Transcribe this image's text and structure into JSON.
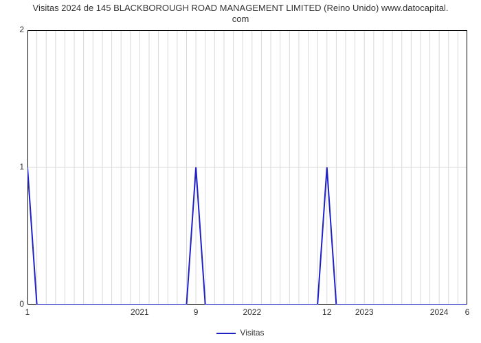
{
  "chart": {
    "type": "line",
    "title_line1": "Visitas 2024 de 145 BLACKBOROUGH ROAD MANAGEMENT LIMITED (Reino Unido) www.datocapital.",
    "title_line2": "com",
    "title_fontsize": 13,
    "title_color": "#333333",
    "background_color": "#ffffff",
    "plot_border_color": "#000000",
    "grid_color": "#d9d9d9",
    "axis_label_fontsize": 12,
    "axis_label_color": "#333333",
    "xlim": [
      0,
      47
    ],
    "ylim": [
      0,
      2
    ],
    "ytick_positions": [
      0,
      1,
      2
    ],
    "ytick_labels": [
      "0",
      "1",
      "2"
    ],
    "xgrid_positions": [
      0,
      1,
      2,
      3,
      4,
      5,
      6,
      7,
      8,
      9,
      10,
      11,
      12,
      13,
      14,
      15,
      16,
      17,
      18,
      19,
      20,
      21,
      22,
      23,
      24,
      25,
      26,
      27,
      28,
      29,
      30,
      31,
      32,
      33,
      34,
      35,
      36,
      37,
      38,
      39,
      40,
      41,
      42,
      43,
      44,
      45,
      46,
      47
    ],
    "xtick_labels": [
      {
        "x": 0,
        "label": "1"
      },
      {
        "x": 12,
        "label": "2021"
      },
      {
        "x": 18,
        "label": "9"
      },
      {
        "x": 24,
        "label": "2022"
      },
      {
        "x": 32,
        "label": "12"
      },
      {
        "x": 36,
        "label": "2023"
      },
      {
        "x": 44,
        "label": "2024"
      },
      {
        "x": 47,
        "label": "6"
      }
    ],
    "series": {
      "name": "Visitas",
      "color": "#1d21c6",
      "line_width": 2,
      "x": [
        0,
        1,
        2,
        3,
        4,
        5,
        6,
        7,
        8,
        9,
        10,
        11,
        12,
        13,
        14,
        15,
        16,
        17,
        18,
        19,
        20,
        21,
        22,
        23,
        24,
        25,
        26,
        27,
        28,
        29,
        30,
        31,
        32,
        33,
        34,
        35,
        36,
        37,
        38,
        39,
        40,
        41,
        42,
        43,
        44,
        45,
        46,
        47
      ],
      "y": [
        1,
        0,
        0,
        0,
        0,
        0,
        0,
        0,
        0,
        0,
        0,
        0,
        0,
        0,
        0,
        0,
        0,
        0,
        1,
        0,
        0,
        0,
        0,
        0,
        0,
        0,
        0,
        0,
        0,
        0,
        0,
        0,
        1,
        0,
        0,
        0,
        0,
        0,
        0,
        0,
        0,
        0,
        0,
        0,
        0,
        0,
        0,
        0
      ]
    },
    "legend": {
      "label": "Visitas",
      "color": "#1d21c6"
    }
  }
}
